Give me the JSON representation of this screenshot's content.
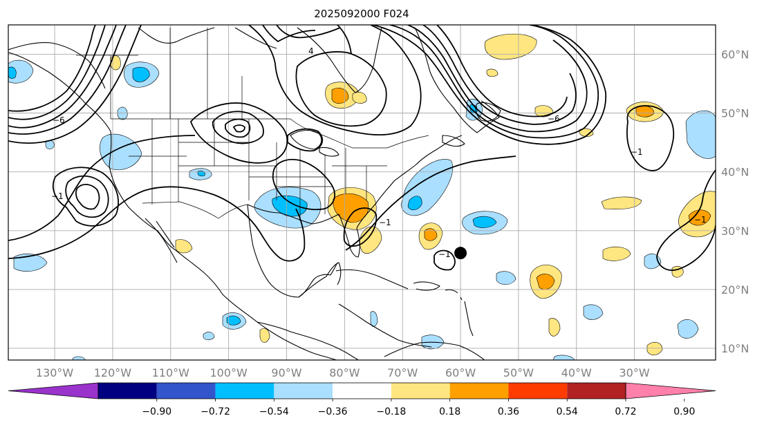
{
  "title": "2025092000 F024",
  "map": {
    "lon_range": [
      -138,
      -16
    ],
    "lat_range": [
      8,
      65
    ],
    "gridlines": true,
    "lon_ticks": [
      {
        "value": -130,
        "label": "130°W"
      },
      {
        "value": -120,
        "label": "120°W"
      },
      {
        "value": -110,
        "label": "110°W"
      },
      {
        "value": -100,
        "label": "100°W"
      },
      {
        "value": -90,
        "label": "90°W"
      },
      {
        "value": -80,
        "label": "80°W"
      },
      {
        "value": -70,
        "label": "70°W"
      },
      {
        "value": -60,
        "label": "60°W"
      },
      {
        "value": -50,
        "label": "50°W"
      },
      {
        "value": -40,
        "label": "40°W"
      },
      {
        "value": -30,
        "label": "30°W"
      }
    ],
    "lat_ticks": [
      {
        "value": 60,
        "label": "60°N"
      },
      {
        "value": 50,
        "label": "50°N"
      },
      {
        "value": 40,
        "label": "40°N"
      },
      {
        "value": 30,
        "label": "30°N"
      },
      {
        "value": 20,
        "label": "20°N"
      },
      {
        "value": 10,
        "label": "10°N"
      }
    ],
    "marker": {
      "lon": -60,
      "lat": 26.2,
      "color": "#000000"
    }
  },
  "colorbar": {
    "extend": "both",
    "bins": [
      "#9933cc",
      "#000080",
      "#3355cc",
      "#00bfff",
      "#aadfff",
      "#ffffff",
      "#ffe680",
      "#ffa000",
      "#ff3c00",
      "#b22222",
      "#ff80aa"
    ],
    "ticks": [
      "−0.90",
      "−0.72",
      "−0.54",
      "−0.36",
      "−0.18",
      "0.18",
      "0.36",
      "0.54",
      "0.72",
      "0.90"
    ]
  },
  "contour_labels": [
    "−6",
    "4",
    "−1",
    "−1",
    "−1",
    "−6",
    "−1",
    "−1"
  ],
  "colors": {
    "land_outline": "#000000",
    "grid": "#aaaaaa",
    "contour": "#000000",
    "positive_light": "#ffe680",
    "positive_mid": "#ffa000",
    "negative_light": "#aadfff",
    "negative_mid": "#00bfff"
  }
}
